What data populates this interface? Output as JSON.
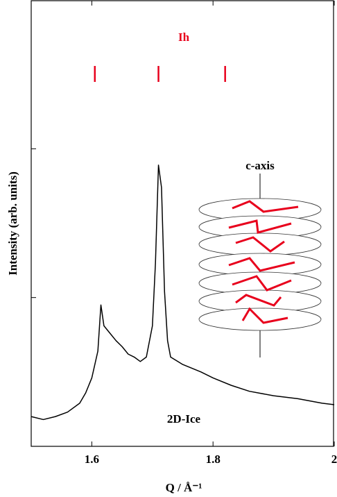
{
  "chart_data": {
    "type": "line",
    "ylabel": "Intensity (arb. units)",
    "xlabel": "Q / Å⁻¹",
    "xlim": [
      1.5,
      2.0
    ],
    "xticks": [
      1.6,
      1.8,
      2
    ],
    "ylim": [
      0,
      3
    ],
    "yticks": [
      1,
      2
    ],
    "series": [
      {
        "color": "#000000",
        "x": [
          1.5,
          1.52,
          1.54,
          1.56,
          1.58,
          1.59,
          1.6,
          1.61,
          1.615,
          1.62,
          1.63,
          1.64,
          1.65,
          1.66,
          1.67,
          1.68,
          1.69,
          1.7,
          1.705,
          1.71,
          1.715,
          1.72,
          1.725,
          1.73,
          1.75,
          1.78,
          1.8,
          1.83,
          1.86,
          1.9,
          1.94,
          1.98,
          2.0
        ],
        "values": [
          0.2,
          0.18,
          0.2,
          0.23,
          0.29,
          0.36,
          0.46,
          0.64,
          0.95,
          0.81,
          0.76,
          0.71,
          0.67,
          0.62,
          0.6,
          0.57,
          0.6,
          0.81,
          1.23,
          1.89,
          1.74,
          1.04,
          0.71,
          0.6,
          0.55,
          0.5,
          0.46,
          0.41,
          0.37,
          0.34,
          0.32,
          0.29,
          0.28
        ]
      }
    ],
    "reflections": {
      "name": "Ih",
      "color": "#e8001c",
      "x": [
        1.605,
        1.71,
        1.82
      ]
    },
    "annotations": [
      "2D-Ice",
      "c-axis"
    ]
  }
}
